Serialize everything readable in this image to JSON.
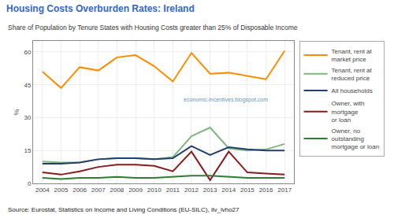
{
  "chart_data": {
    "type": "line",
    "title": "Housing Costs Overburden Rates: Ireland",
    "subtitle": "Share of Population by Tenure States with Housing Costs greater than 25% of Disposable Income",
    "ylabel": "%",
    "annotations": [
      "economic-incentives.blogspot.com",
      "Source: Eurostat, Statistics on Income and Living Conditions (EU-SILC), ilv_lvho27"
    ],
    "x": [
      2004,
      2005,
      2006,
      2007,
      2008,
      2009,
      2010,
      2011,
      2012,
      2013,
      2014,
      2015,
      2016,
      2017
    ],
    "xlim": [
      2003.5,
      2017.5
    ],
    "xticks": [
      2004,
      2005,
      2006,
      2007,
      2008,
      2009,
      2010,
      2011,
      2012,
      2013,
      2014,
      2015,
      2016,
      2017
    ],
    "ylim": [
      0,
      65
    ],
    "yticks": [
      0,
      15,
      30,
      45,
      60
    ],
    "grid": true,
    "legend": "right",
    "series": [
      {
        "name": "Tenant, rent at\nmarket price",
        "color": "#FF8C00",
        "values": [
          51.0,
          43.5,
          53.0,
          51.5,
          57.5,
          58.5,
          53.5,
          46.5,
          59.5,
          50.0,
          50.5,
          49.0,
          47.5,
          60.5
        ]
      },
      {
        "name": "Tenant, rent at\nreduced price",
        "color": "#7DB87D",
        "values": [
          10.0,
          9.5,
          9.5,
          11.0,
          11.5,
          11.5,
          11.0,
          12.0,
          21.5,
          25.5,
          16.0,
          15.0,
          15.5,
          18.0
        ]
      },
      {
        "name": "All households",
        "color": "#1F3F6E",
        "values": [
          9.0,
          9.0,
          9.5,
          11.0,
          11.5,
          11.5,
          11.0,
          11.5,
          17.0,
          13.0,
          16.5,
          15.5,
          15.0,
          15.0
        ]
      },
      {
        "name": "Owner, with\nmortgage\nor loan",
        "color": "#8B1A1A",
        "values": [
          5.0,
          4.0,
          5.5,
          7.5,
          8.5,
          8.5,
          8.0,
          5.5,
          14.5,
          1.5,
          14.5,
          5.0,
          4.5,
          4.0
        ]
      },
      {
        "name": "Owner, no\noutstanding\nmortgage or loan",
        "color": "#2E7D32",
        "values": [
          2.5,
          2.0,
          2.5,
          2.5,
          3.0,
          2.5,
          2.5,
          3.0,
          3.5,
          3.5,
          3.0,
          2.5,
          2.5,
          2.5
        ]
      }
    ]
  }
}
